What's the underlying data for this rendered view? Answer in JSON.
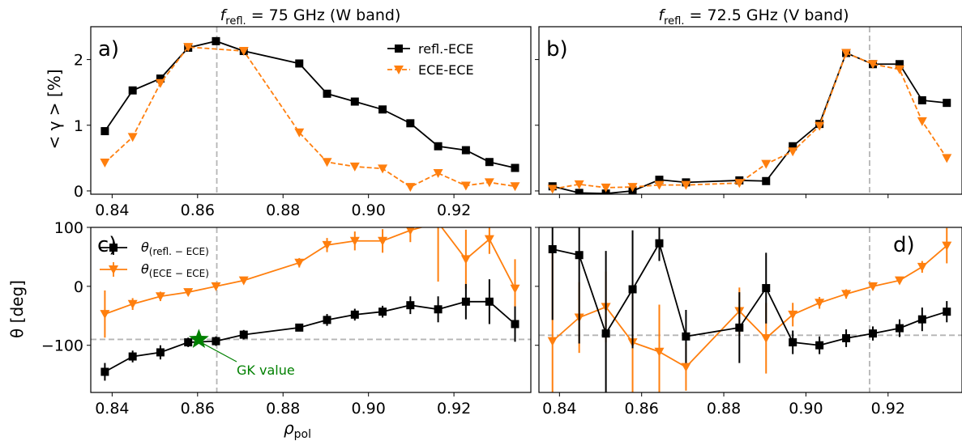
{
  "chart_data": [
    {
      "type": "line",
      "panel_label": "a)",
      "title": {
        "main": "f",
        "sub": "refl.",
        "rest": " = 75 GHz (W band)"
      },
      "ylabel": "< γ >  [%]",
      "xlim": [
        0.835,
        0.938
      ],
      "ylim": [
        -0.05,
        2.5
      ],
      "xticks": [
        "0.84",
        "0.86",
        "0.88",
        "0.90",
        "0.92"
      ],
      "yticks": [
        "0",
        "1",
        "2"
      ],
      "vline": 0.8645,
      "legend": {
        "position": "top-right",
        "entries": [
          "refl.-ECE",
          "ECE-ECE"
        ]
      },
      "series": [
        {
          "name": "refl.-ECE",
          "color": "#000000",
          "marker": "square",
          "dashed": false,
          "x": [
            0.8383,
            0.8448,
            0.8513,
            0.8578,
            0.8643,
            0.8708,
            0.8838,
            0.8903,
            0.8968,
            0.9033,
            0.9098,
            0.9163,
            0.9228,
            0.9283,
            0.9343
          ],
          "y": [
            0.91,
            1.53,
            1.71,
            2.18,
            2.28,
            2.13,
            1.94,
            1.48,
            1.36,
            1.24,
            1.03,
            0.68,
            0.62,
            0.44,
            0.35
          ]
        },
        {
          "name": "ECE-ECE",
          "color": "#ff7f0e",
          "marker": "triangle",
          "dashed": true,
          "x": [
            0.8383,
            0.8448,
            0.8513,
            0.8578,
            0.8708,
            0.8838,
            0.8903,
            0.8968,
            0.9033,
            0.9098,
            0.9163,
            0.9228,
            0.9283,
            0.9343
          ],
          "y": [
            0.43,
            0.82,
            1.64,
            2.19,
            2.13,
            0.89,
            0.44,
            0.37,
            0.34,
            0.06,
            0.27,
            0.08,
            0.13,
            0.07
          ]
        }
      ]
    },
    {
      "type": "line",
      "panel_label": "b)",
      "title": {
        "main": "f",
        "sub": "refl.",
        "rest": " = 72.5 GHz (V band)"
      },
      "xlim": [
        0.835,
        0.938
      ],
      "ylim": [
        -0.05,
        2.5
      ],
      "xticks": [],
      "yticks": [],
      "vline": 0.9155,
      "series": [
        {
          "name": "refl.-ECE",
          "color": "#000000",
          "marker": "square",
          "dashed": false,
          "x": [
            0.8383,
            0.8448,
            0.8513,
            0.8578,
            0.8643,
            0.8708,
            0.8838,
            0.8903,
            0.8968,
            0.9033,
            0.9098,
            0.9163,
            0.9228,
            0.9283,
            0.9343
          ],
          "y": [
            0.07,
            -0.03,
            -0.04,
            0.0,
            0.17,
            0.13,
            0.16,
            0.15,
            0.68,
            1.02,
            2.1,
            1.93,
            1.93,
            1.38,
            1.34
          ]
        },
        {
          "name": "ECE-ECE",
          "color": "#ff7f0e",
          "marker": "triangle",
          "dashed": true,
          "x": [
            0.8383,
            0.8448,
            0.8513,
            0.8578,
            0.8643,
            0.8708,
            0.8838,
            0.8903,
            0.8968,
            0.9033,
            0.9098,
            0.9163,
            0.9228,
            0.9283,
            0.9343
          ],
          "y": [
            0.03,
            0.1,
            0.05,
            0.06,
            0.09,
            0.09,
            0.12,
            0.41,
            0.6,
            0.99,
            2.1,
            1.93,
            1.85,
            1.06,
            0.5
          ]
        }
      ]
    },
    {
      "type": "line",
      "panel_label": "c)",
      "xlabel": {
        "main": "ρ",
        "sub": "pol"
      },
      "ylabel": "θ [deg]",
      "xlim": [
        0.835,
        0.938
      ],
      "ylim": [
        -180,
        100
      ],
      "xticks": [
        "0.84",
        "0.86",
        "0.88",
        "0.90",
        "0.92"
      ],
      "yticks": [
        "100",
        "0",
        "−100"
      ],
      "vline": 0.8645,
      "hline": -90,
      "legend": {
        "position": "top-left",
        "entries": [
          {
            "main": "θ",
            "sub": "(refl. − ECE)"
          },
          {
            "main": "θ",
            "sub": "(ECE − ECE)"
          }
        ]
      },
      "annotation": {
        "text": "GK value",
        "x": 0.8603,
        "y": -90,
        "color": "#008000"
      },
      "series": [
        {
          "name": "θ(refl. − ECE)",
          "color": "#000000",
          "marker": "square",
          "x": [
            0.8383,
            0.8448,
            0.8513,
            0.8578,
            0.8643,
            0.8708,
            0.8838,
            0.8903,
            0.8968,
            0.9033,
            0.9098,
            0.9163,
            0.9228,
            0.9283,
            0.9343
          ],
          "y": [
            -145,
            -119,
            -112,
            -95,
            -93,
            -82,
            -70,
            -57,
            -48,
            -43,
            -32,
            -39,
            -26,
            -26,
            -64
          ],
          "err": [
            15,
            10,
            12,
            8,
            8,
            8,
            6,
            10,
            10,
            10,
            15,
            22,
            30,
            38,
            30
          ]
        },
        {
          "name": "θ(ECE − ECE)",
          "color": "#ff7f0e",
          "marker": "triangle",
          "x": [
            0.8383,
            0.8448,
            0.8513,
            0.8578,
            0.8643,
            0.8708,
            0.8838,
            0.8903,
            0.8968,
            0.9033,
            0.9098,
            0.9163,
            0.9228,
            0.9283,
            0.9343
          ],
          "y": [
            -47,
            -30,
            -17,
            -10,
            0,
            10,
            40,
            70,
            77,
            77,
            95,
            108,
            46,
            80,
            -4
          ],
          "err": [
            40,
            10,
            8,
            5,
            5,
            5,
            8,
            12,
            16,
            20,
            20,
            100,
            50,
            25,
            50
          ]
        }
      ]
    },
    {
      "type": "line",
      "panel_label": "d)",
      "xlim": [
        0.835,
        0.938
      ],
      "ylim": [
        -180,
        100
      ],
      "xticks": [
        "0.84",
        "0.86",
        "0.88",
        "0.90",
        "0.92"
      ],
      "yticks": [],
      "vline": 0.9155,
      "hline": -83,
      "series": [
        {
          "name": "θ(refl. − ECE)",
          "color": "#000000",
          "marker": "square",
          "x": [
            0.8383,
            0.8448,
            0.8513,
            0.8578,
            0.8643,
            0.8708,
            0.8838,
            0.8903,
            0.8968,
            0.9033,
            0.9098,
            0.9163,
            0.9228,
            0.9283,
            0.9343
          ],
          "y": [
            63,
            53,
            -80,
            -5,
            73,
            -85,
            -70,
            -3,
            -95,
            -100,
            -88,
            -80,
            -71,
            -56,
            -43
          ],
          "err": [
            120,
            150,
            140,
            100,
            30,
            45,
            60,
            60,
            20,
            15,
            15,
            12,
            15,
            20,
            18
          ]
        },
        {
          "name": "θ(ECE − ECE)",
          "color": "#ff7f0e",
          "marker": "triangle",
          "x": [
            0.8383,
            0.8448,
            0.8513,
            0.8578,
            0.8643,
            0.8708,
            0.8838,
            0.8903,
            0.8968,
            0.9033,
            0.9098,
            0.9163,
            0.9228,
            0.9283,
            0.9343
          ],
          "y": [
            -93,
            -53,
            -35,
            -95,
            -111,
            -137,
            -42,
            -88,
            -48,
            -28,
            -13,
            0,
            10,
            33,
            69
          ],
          "err": [
            150,
            60,
            60,
            100,
            80,
            40,
            40,
            60,
            20,
            10,
            8,
            6,
            6,
            10,
            30
          ]
        }
      ]
    }
  ]
}
